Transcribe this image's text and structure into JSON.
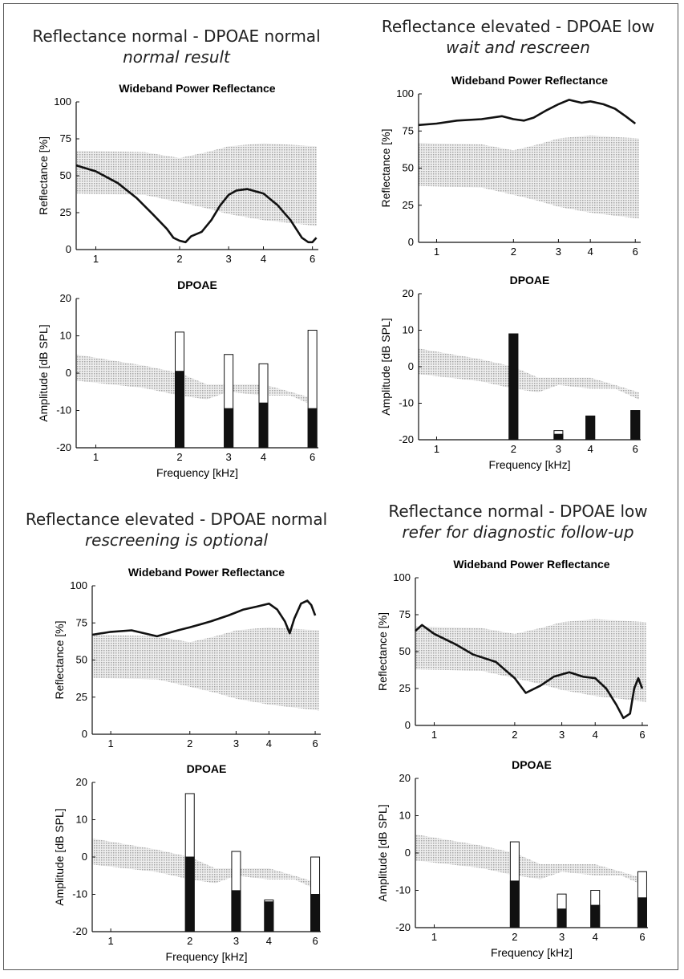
{
  "quadrants": [
    {
      "title": "Reflectance normal - DPOAE normal",
      "subtitle": "normal result"
    },
    {
      "title": "Reflectance elevated - DPOAE low",
      "subtitle": "wait and rescreen"
    },
    {
      "title": "Reflectance elevated - DPOAE normal",
      "subtitle": "rescreening is optional"
    },
    {
      "title": "Reflectance normal - DPOAE low",
      "subtitle": "refer for diagnostic follow-up"
    }
  ],
  "colors": {
    "curve": "#111111",
    "band": "#c8c8c8",
    "bar_fill": "#111111",
    "bar_outline": "#111111"
  },
  "chart_data": [
    {
      "type": "line",
      "panel": "reflectance-1",
      "title": "Wideband Power Reflectance",
      "ylabel": "Reflectance [%]",
      "xlabel": "",
      "xscale": "log",
      "xlim": [
        0.85,
        6.3
      ],
      "ylim": [
        0,
        100
      ],
      "xticks": [
        1,
        2,
        3,
        4,
        6
      ],
      "yticks": [
        0,
        25,
        50,
        75,
        100
      ],
      "x": [
        0.85,
        1,
        1.2,
        1.4,
        1.6,
        1.8,
        1.9,
        2.0,
        2.1,
        2.2,
        2.4,
        2.6,
        2.8,
        3.0,
        3.2,
        3.5,
        4.0,
        4.5,
        5.0,
        5.5,
        5.8,
        6.0,
        6.2
      ],
      "y": [
        57,
        53,
        45,
        35,
        24,
        14,
        8,
        6,
        5,
        9,
        12,
        20,
        30,
        37,
        40,
        41,
        38,
        30,
        20,
        8,
        5,
        5,
        8
      ],
      "norm_x": [
        0.85,
        1.5,
        2,
        2.5,
        3,
        4,
        5,
        6.2
      ],
      "norm_low": [
        38,
        37,
        32,
        28,
        24,
        20,
        18,
        16
      ],
      "norm_high": [
        67,
        66,
        62,
        66,
        70,
        72,
        71,
        70
      ]
    },
    {
      "type": "bar",
      "panel": "dpoae-1",
      "title": "DPOAE",
      "ylabel": "Amplitude [dB SPL]",
      "xlabel": "Frequency [kHz]",
      "xscale": "log",
      "xlim": [
        0.85,
        6.3
      ],
      "ylim": [
        -20,
        20
      ],
      "xticks": [
        1,
        2,
        3,
        4,
        6
      ],
      "yticks": [
        -20,
        -10,
        0,
        10,
        20
      ],
      "x": [
        2,
        3,
        4,
        6
      ],
      "response": [
        0.5,
        -9.5,
        -8,
        -9.5
      ],
      "upper": [
        11,
        5,
        2.5,
        11.5
      ],
      "norm_x": [
        0.85,
        1.5,
        2,
        2.5,
        3,
        4,
        5,
        6.2
      ],
      "norm_low": [
        -2,
        -4,
        -6,
        -7,
        -5,
        -6,
        -6,
        -9
      ],
      "norm_high": [
        5,
        2,
        0,
        -3,
        -3,
        -3,
        -5,
        -7
      ]
    },
    {
      "type": "line",
      "panel": "reflectance-2",
      "title": "Wideband Power Reflectance",
      "ylabel": "Reflectance [%]",
      "xlabel": "",
      "xscale": "log",
      "xlim": [
        0.85,
        6.3
      ],
      "ylim": [
        0,
        100
      ],
      "xticks": [
        1,
        2,
        3,
        4,
        6
      ],
      "yticks": [
        0,
        25,
        50,
        75,
        100
      ],
      "x": [
        0.85,
        1,
        1.2,
        1.5,
        1.8,
        2.0,
        2.2,
        2.4,
        2.7,
        3.0,
        3.3,
        3.7,
        4.0,
        4.5,
        5.0,
        5.5,
        6.0
      ],
      "y": [
        79,
        80,
        82,
        83,
        85,
        83,
        82,
        84,
        89,
        93,
        96,
        94,
        95,
        93,
        90,
        85,
        80
      ],
      "norm_x": [
        0.85,
        1.5,
        2,
        2.5,
        3,
        4,
        5,
        6.2
      ],
      "norm_low": [
        38,
        37,
        32,
        28,
        24,
        20,
        18,
        16
      ],
      "norm_high": [
        67,
        66,
        62,
        66,
        70,
        72,
        71,
        70
      ]
    },
    {
      "type": "bar",
      "panel": "dpoae-2",
      "title": "DPOAE",
      "ylabel": "Amplitude [dB SPL]",
      "xlabel": "Frequency [kHz]",
      "xscale": "log",
      "xlim": [
        0.85,
        6.3
      ],
      "ylim": [
        -20,
        20
      ],
      "xticks": [
        1,
        2,
        3,
        4,
        6
      ],
      "yticks": [
        -20,
        -10,
        0,
        10,
        20
      ],
      "x": [
        2,
        3,
        4,
        6
      ],
      "response": [
        9,
        -18.5,
        -13.5,
        -12
      ],
      "upper": [
        9,
        -17.5,
        -13.5,
        -12
      ],
      "norm_x": [
        0.85,
        1.5,
        2,
        2.5,
        3,
        4,
        5,
        6.2
      ],
      "norm_low": [
        -2,
        -4,
        -6,
        -7,
        -5,
        -6,
        -6,
        -9
      ],
      "norm_high": [
        5,
        2,
        0,
        -3,
        -3,
        -3,
        -5,
        -7
      ]
    },
    {
      "type": "line",
      "panel": "reflectance-3",
      "title": "Wideband Power Reflectance",
      "ylabel": "Reflectance [%]",
      "xlabel": "",
      "xscale": "log",
      "xlim": [
        0.85,
        6.3
      ],
      "ylim": [
        0,
        100
      ],
      "xticks": [
        1,
        2,
        3,
        4,
        6
      ],
      "yticks": [
        0,
        25,
        50,
        75,
        100
      ],
      "x": [
        0.85,
        1,
        1.2,
        1.5,
        1.8,
        2.0,
        2.4,
        2.8,
        3.2,
        3.6,
        4.0,
        4.3,
        4.6,
        4.8,
        5.0,
        5.3,
        5.6,
        5.8,
        6.0
      ],
      "y": [
        67,
        69,
        70,
        66,
        70,
        72,
        76,
        80,
        84,
        86,
        88,
        84,
        76,
        68,
        78,
        88,
        90,
        87,
        80
      ],
      "norm_x": [
        0.85,
        1.5,
        2,
        2.5,
        3,
        4,
        5,
        6.2
      ],
      "norm_low": [
        38,
        37,
        32,
        28,
        24,
        20,
        18,
        16
      ],
      "norm_high": [
        67,
        66,
        62,
        66,
        70,
        72,
        71,
        70
      ]
    },
    {
      "type": "bar",
      "panel": "dpoae-3",
      "title": "DPOAE",
      "ylabel": "Amplitude [dB SPL]",
      "xlabel": "Frequency [kHz]",
      "xscale": "log",
      "xlim": [
        0.85,
        6.3
      ],
      "ylim": [
        -20,
        20
      ],
      "xticks": [
        1,
        2,
        3,
        4,
        6
      ],
      "yticks": [
        -20,
        -10,
        0,
        10,
        20
      ],
      "x": [
        2,
        3,
        4,
        6
      ],
      "response": [
        0,
        -9,
        -12,
        -10
      ],
      "upper": [
        17,
        1.5,
        -11.5,
        0
      ],
      "norm_x": [
        0.85,
        1.5,
        2,
        2.5,
        3,
        4,
        5,
        6.2
      ],
      "norm_low": [
        -2,
        -4,
        -6,
        -7,
        -5,
        -6,
        -6,
        -9
      ],
      "norm_high": [
        5,
        2,
        0,
        -3,
        -3,
        -3,
        -5,
        -7
      ]
    },
    {
      "type": "line",
      "panel": "reflectance-4",
      "title": "Wideband Power Reflectance",
      "ylabel": "Reflectance [%]",
      "xlabel": "",
      "xscale": "log",
      "xlim": [
        0.85,
        6.3
      ],
      "ylim": [
        0,
        100
      ],
      "xticks": [
        1,
        2,
        3,
        4,
        6
      ],
      "yticks": [
        0,
        25,
        50,
        75,
        100
      ],
      "x": [
        0.85,
        0.9,
        1.0,
        1.2,
        1.4,
        1.7,
        2.0,
        2.2,
        2.5,
        2.8,
        3.2,
        3.6,
        4.0,
        4.4,
        4.8,
        5.1,
        5.4,
        5.6,
        5.8,
        6.0
      ],
      "y": [
        64,
        68,
        62,
        55,
        48,
        43,
        32,
        22,
        27,
        33,
        36,
        33,
        32,
        25,
        14,
        5,
        8,
        25,
        32,
        25
      ],
      "norm_x": [
        0.85,
        1.5,
        2,
        2.5,
        3,
        4,
        5,
        6.2
      ],
      "norm_low": [
        38,
        37,
        32,
        28,
        24,
        20,
        18,
        16
      ],
      "norm_high": [
        67,
        66,
        62,
        66,
        70,
        72,
        71,
        70
      ]
    },
    {
      "type": "bar",
      "panel": "dpoae-4",
      "title": "DPOAE",
      "ylabel": "Amplitude [dB SPL]",
      "xlabel": "Frequency [kHz]",
      "xscale": "log",
      "xlim": [
        0.85,
        6.3
      ],
      "ylim": [
        -20,
        20
      ],
      "xticks": [
        1,
        2,
        3,
        4,
        6
      ],
      "yticks": [
        -20,
        -10,
        0,
        10,
        20
      ],
      "x": [
        2,
        3,
        4,
        6
      ],
      "response": [
        -7.5,
        -15,
        -14,
        -12
      ],
      "upper": [
        3,
        -11,
        -10,
        -5
      ],
      "norm_x": [
        0.85,
        1.5,
        2,
        2.5,
        3,
        4,
        5,
        6.2
      ],
      "norm_low": [
        -2,
        -4,
        -6,
        -7,
        -5,
        -6,
        -6,
        -9
      ],
      "norm_high": [
        5,
        2,
        0,
        -3,
        -3,
        -3,
        -5,
        -7
      ]
    }
  ]
}
